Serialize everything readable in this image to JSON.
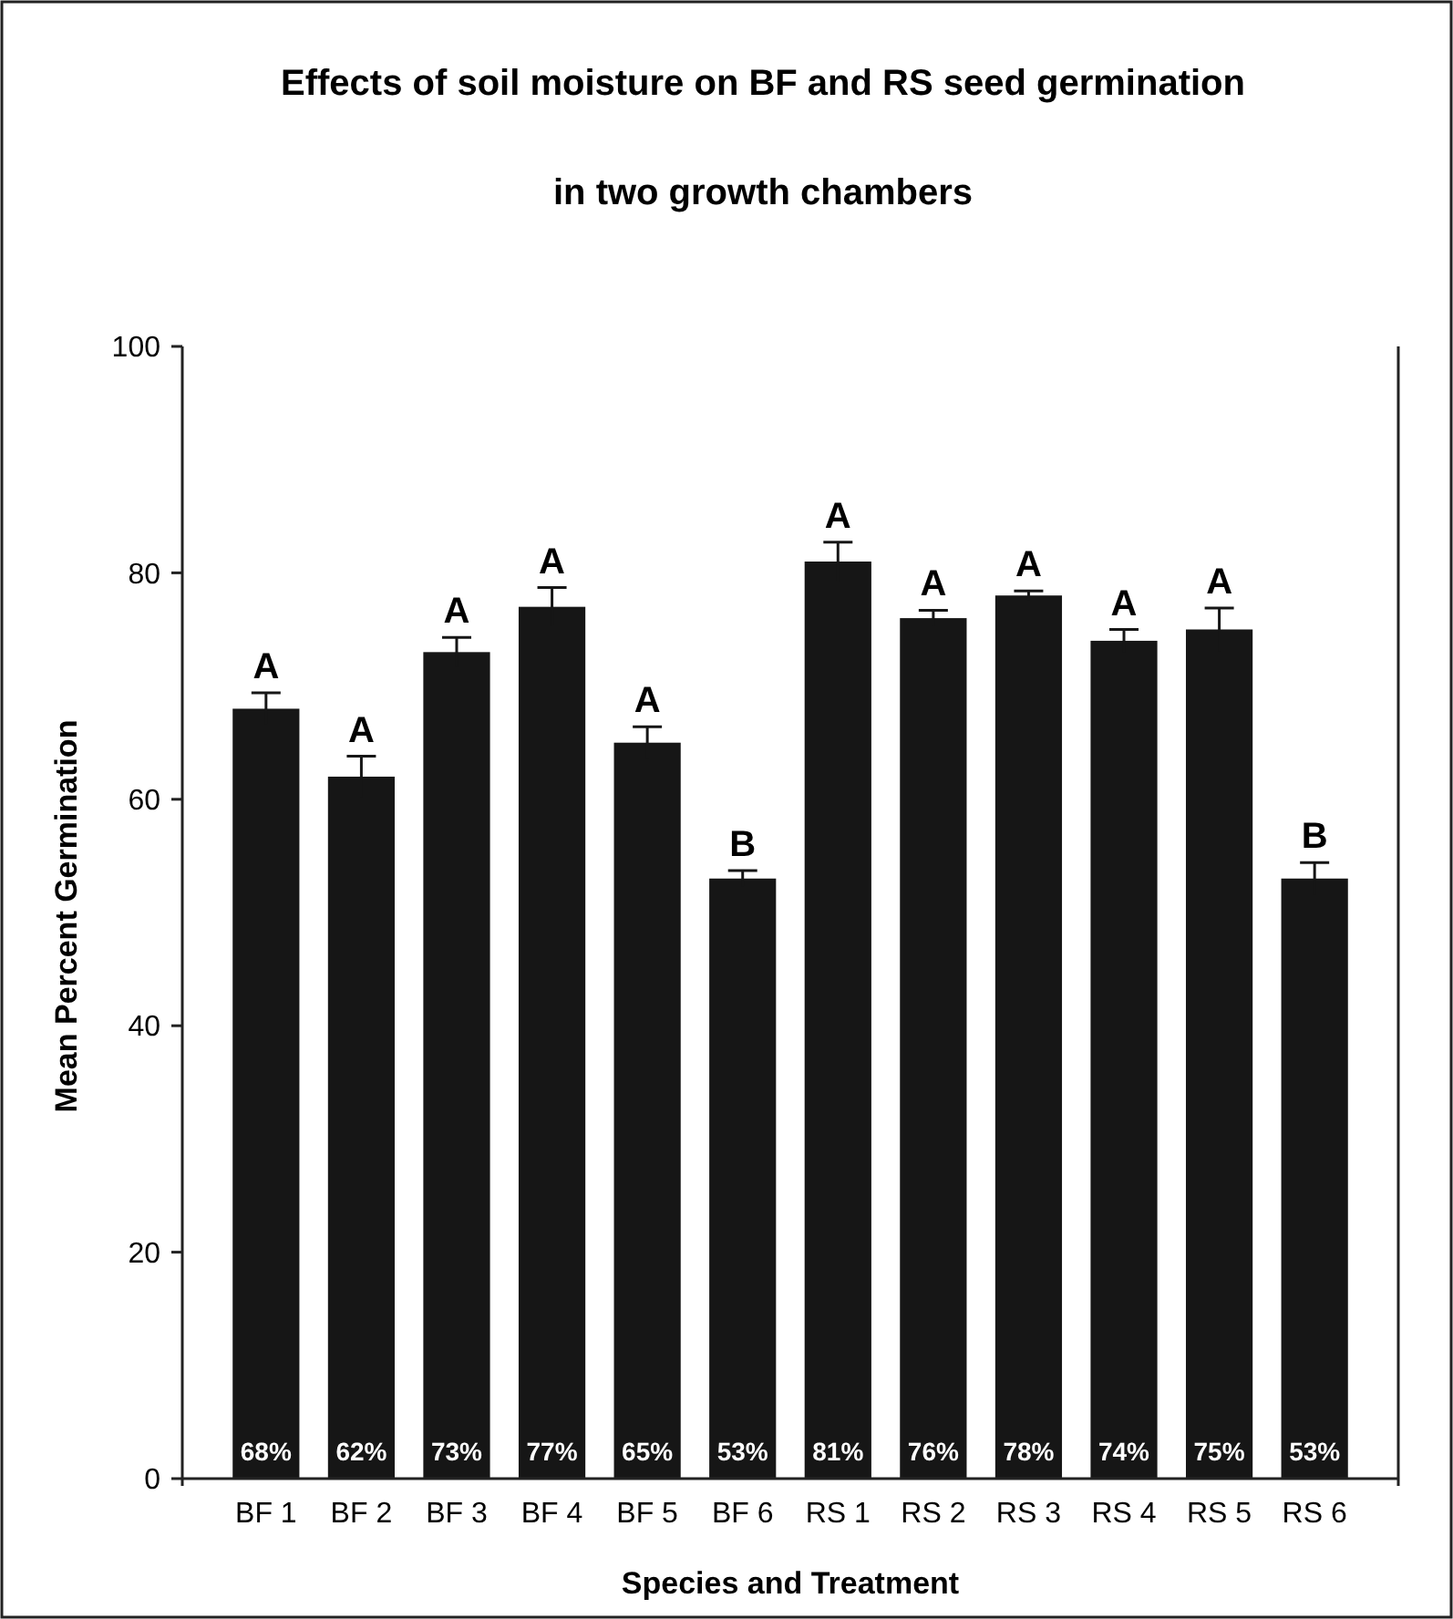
{
  "chart_data": {
    "type": "bar",
    "title": "Effects of soil moisture on BF and RS seed germination",
    "subtitle": "in two growth chambers",
    "xlabel": "Species and Treatment",
    "ylabel": "Mean Percent Germination",
    "categories": [
      "BF 1",
      "BF 2",
      "BF 3",
      "BF 4",
      "BF 5",
      "BF 6",
      "RS 1",
      "RS 2",
      "RS 3",
      "RS 4",
      "RS 5",
      "RS 6"
    ],
    "values": [
      68,
      62,
      73,
      77,
      65,
      53,
      81,
      76,
      78,
      74,
      75,
      53
    ],
    "errors": [
      1.4,
      1.8,
      1.3,
      1.7,
      1.4,
      0.7,
      1.7,
      0.7,
      0.4,
      1.0,
      1.9,
      1.4
    ],
    "value_labels": [
      "68%",
      "62%",
      "73%",
      "77%",
      "65%",
      "53%",
      "81%",
      "76%",
      "78%",
      "74%",
      "75%",
      "53%"
    ],
    "color": "#161616",
    "ylim": [
      0,
      100
    ],
    "yticks": [
      0,
      20,
      40,
      60,
      80,
      100
    ],
    "grid": false,
    "annotations": [
      {
        "text": "A",
        "x": "BF 1",
        "y": 69.4
      },
      {
        "text": "A",
        "x": "BF 2",
        "y": 63.8
      },
      {
        "text": "A",
        "x": "BF 3",
        "y": 74.3
      },
      {
        "text": "A",
        "x": "BF 4",
        "y": 78.7
      },
      {
        "text": "A",
        "x": "BF 5",
        "y": 66.4
      },
      {
        "text": "B",
        "x": "BF 6",
        "y": 53.7
      },
      {
        "text": "A",
        "x": "RS 1",
        "y": 82.7
      },
      {
        "text": "A",
        "x": "RS 2",
        "y": 76.7
      },
      {
        "text": "A",
        "x": "RS 3",
        "y": 78.4
      },
      {
        "text": "A",
        "x": "RS 4",
        "y": 75.0
      },
      {
        "text": "A",
        "x": "RS 5",
        "y": 76.9
      },
      {
        "text": "B",
        "x": "RS 6",
        "y": 54.4
      }
    ]
  }
}
